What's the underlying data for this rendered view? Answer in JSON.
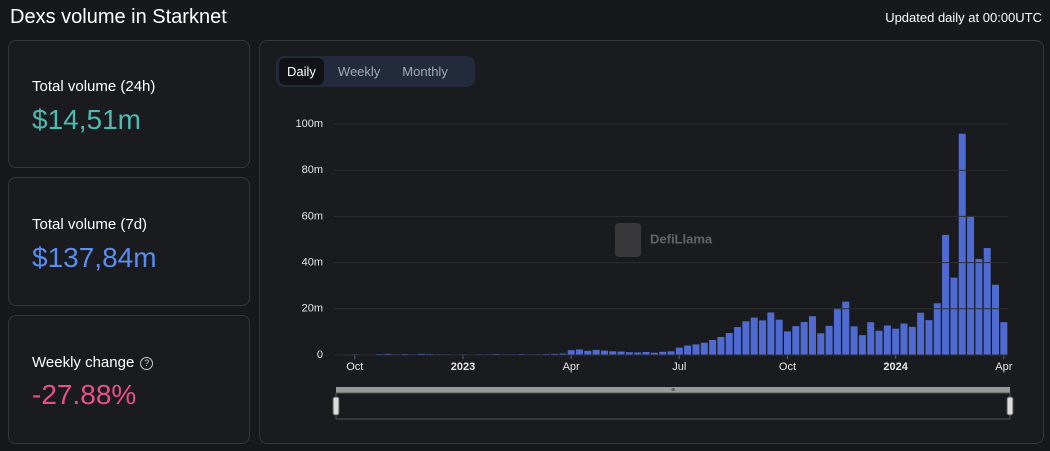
{
  "header": {
    "title": "Dexs volume in Starknet",
    "updated": "Updated daily at 00:00UTC"
  },
  "stats": [
    {
      "label": "Total volume (24h)",
      "value": "$14,51m"
    },
    {
      "label": "Total volume (7d)",
      "value": "$137,84m"
    },
    {
      "label": "Weekly change",
      "value": "-27.88%"
    }
  ],
  "tabs": [
    "Daily",
    "Weekly",
    "Monthly"
  ],
  "watermark": "DefiLlama",
  "chart_data": {
    "type": "bar",
    "color": "#4f6bd1",
    "grid": true,
    "categories": [
      null,
      null,
      "Oct",
      null,
      null,
      null,
      null,
      null,
      null,
      null,
      null,
      null,
      null,
      null,
      null,
      "2023",
      null,
      null,
      null,
      null,
      null,
      null,
      null,
      null,
      null,
      null,
      null,
      null,
      "Apr",
      null,
      null,
      null,
      null,
      null,
      null,
      null,
      null,
      null,
      null,
      null,
      null,
      "Jul",
      null,
      null,
      null,
      null,
      null,
      null,
      null,
      null,
      null,
      null,
      null,
      null,
      "Oct",
      null,
      null,
      null,
      null,
      null,
      null,
      null,
      null,
      null,
      null,
      null,
      null,
      "2024",
      null,
      null,
      null,
      null,
      null,
      null,
      null,
      null,
      null,
      null,
      null,
      null,
      "Apr"
    ],
    "values": [
      0.1,
      0.1,
      0.3,
      0.2,
      0.2,
      0.4,
      0.5,
      0.3,
      0.4,
      0.3,
      0.5,
      0.4,
      0.3,
      0.3,
      0.2,
      0.3,
      0.2,
      0.3,
      0.3,
      0.4,
      0.3,
      0.3,
      0.4,
      0.3,
      0.3,
      0.4,
      0.5,
      0.6,
      2.1,
      2.4,
      1.8,
      2.2,
      1.9,
      1.6,
      1.5,
      1.2,
      1.1,
      1.3,
      1.0,
      1.4,
      1.6,
      3.2,
      4.1,
      4.6,
      5.3,
      6.5,
      7.8,
      9.5,
      12.1,
      14.6,
      16.2,
      15.0,
      18.4,
      15.3,
      10.2,
      12.5,
      14.3,
      16.8,
      9.4,
      12.6,
      20.3,
      23.1,
      12.4,
      8.6,
      14.2,
      10.5,
      12.8,
      11.4,
      13.6,
      12.2,
      18.3,
      15.1,
      22.4,
      52.0,
      33.5,
      95.8,
      60.2,
      41.6,
      46.3,
      30.4,
      14.2
    ],
    "ylim": [
      0,
      100
    ],
    "yticks": [
      {
        "value": 0,
        "label": "0"
      },
      {
        "value": 20,
        "label": "20m"
      },
      {
        "value": 40,
        "label": "40m"
      },
      {
        "value": 60,
        "label": "60m"
      },
      {
        "value": 80,
        "label": "80m"
      },
      {
        "value": 100,
        "label": "100m"
      }
    ]
  }
}
